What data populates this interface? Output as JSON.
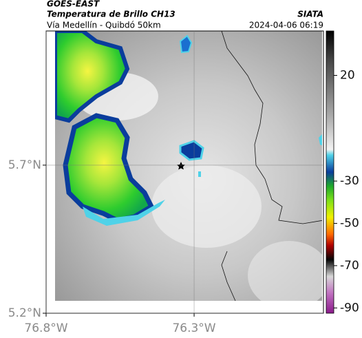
{
  "header": {
    "title": "GOES-EAST",
    "subtitle": "Temperatura de Brillo CH13",
    "source": "SIATA",
    "route": "Vía Medellín - Quibdó 50km",
    "datetime": "2024-04-06 06:19"
  },
  "map": {
    "xlim": [
      -76.8,
      -75.863
    ],
    "ylim": [
      5.2,
      6.153
    ],
    "xticks": [
      {
        "value": -76.8,
        "label": "76.8°W"
      },
      {
        "value": -76.3,
        "label": "76.3°W"
      }
    ],
    "yticks": [
      {
        "value": 5.7,
        "label": "5.7°N"
      },
      {
        "value": 5.2,
        "label": "5.2°N"
      }
    ],
    "grid": true
  },
  "colorbar": {
    "lim": [
      -92.5,
      41
    ],
    "ticks": [
      20,
      -30,
      -50,
      -70,
      -90
    ]
  }
}
